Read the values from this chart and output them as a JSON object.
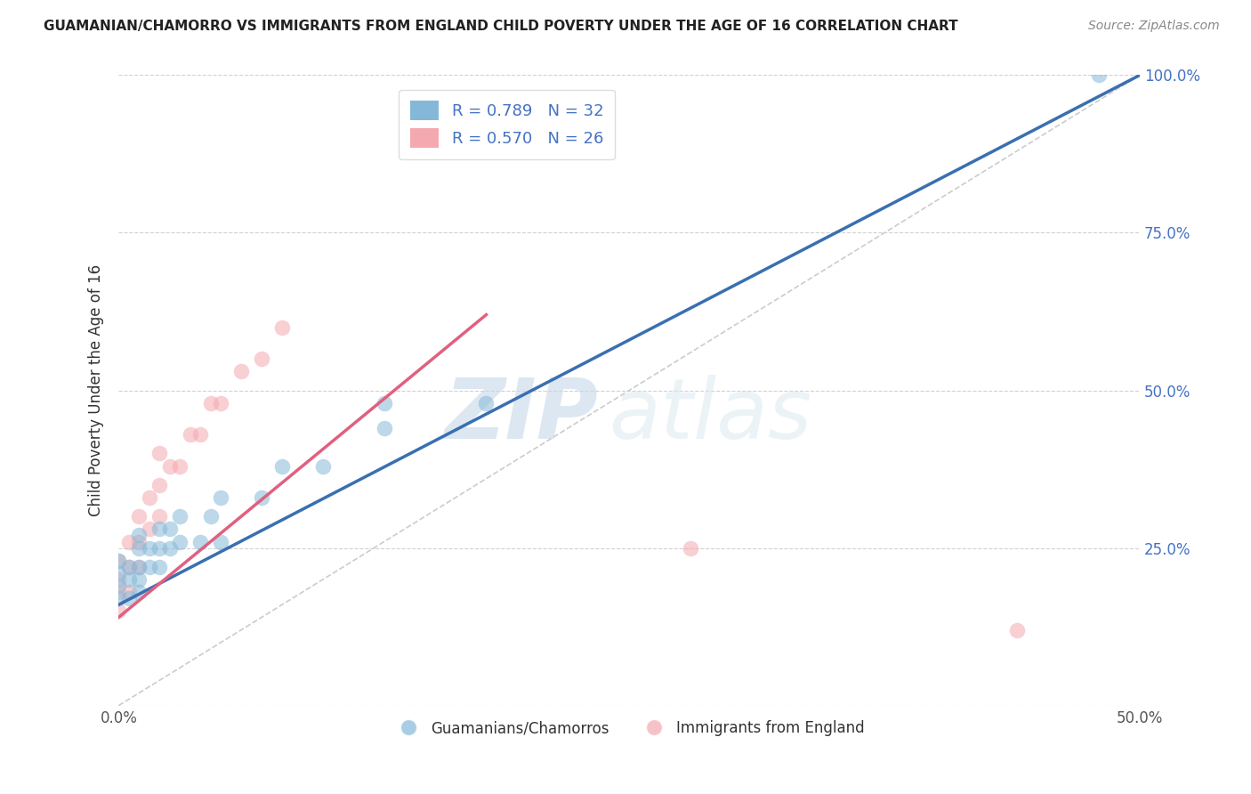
{
  "title": "GUAMANIAN/CHAMORRO VS IMMIGRANTS FROM ENGLAND CHILD POVERTY UNDER THE AGE OF 16 CORRELATION CHART",
  "source": "Source: ZipAtlas.com",
  "ylabel": "Child Poverty Under the Age of 16",
  "xlim": [
    0,
    0.5
  ],
  "ylim": [
    0,
    1.0
  ],
  "xticks": [
    0.0,
    0.1,
    0.2,
    0.3,
    0.4,
    0.5
  ],
  "xtick_labels": [
    "0.0%",
    "",
    "",
    "",
    "",
    "50.0%"
  ],
  "yticks": [
    0.0,
    0.25,
    0.5,
    0.75,
    1.0
  ],
  "ytick_labels_right": [
    "",
    "25.0%",
    "50.0%",
    "75.0%",
    "100.0%"
  ],
  "legend1_label": "R = 0.789   N = 32",
  "legend2_label": "R = 0.570   N = 26",
  "legend_bottom_label1": "Guamanians/Chamorros",
  "legend_bottom_label2": "Immigrants from England",
  "color_blue": "#85b8d8",
  "color_pink": "#f4a8b0",
  "color_blue_line": "#3a6fb0",
  "color_pink_line": "#e06080",
  "watermark_zip": "ZIP",
  "watermark_atlas": "atlas",
  "blue_scatter_x": [
    0.0,
    0.0,
    0.0,
    0.0,
    0.005,
    0.005,
    0.005,
    0.01,
    0.01,
    0.01,
    0.01,
    0.01,
    0.015,
    0.015,
    0.02,
    0.02,
    0.02,
    0.025,
    0.025,
    0.03,
    0.03,
    0.04,
    0.045,
    0.05,
    0.05,
    0.07,
    0.08,
    0.1,
    0.13,
    0.13,
    0.18,
    0.48
  ],
  "blue_scatter_y": [
    0.17,
    0.19,
    0.21,
    0.23,
    0.17,
    0.2,
    0.22,
    0.18,
    0.2,
    0.22,
    0.25,
    0.27,
    0.22,
    0.25,
    0.22,
    0.25,
    0.28,
    0.25,
    0.28,
    0.26,
    0.3,
    0.26,
    0.3,
    0.26,
    0.33,
    0.33,
    0.38,
    0.38,
    0.44,
    0.48,
    0.48,
    1.0
  ],
  "pink_scatter_x": [
    0.0,
    0.0,
    0.0,
    0.0,
    0.005,
    0.005,
    0.005,
    0.01,
    0.01,
    0.01,
    0.015,
    0.015,
    0.02,
    0.02,
    0.02,
    0.025,
    0.03,
    0.035,
    0.04,
    0.045,
    0.05,
    0.06,
    0.07,
    0.08,
    0.28,
    0.44
  ],
  "pink_scatter_y": [
    0.15,
    0.18,
    0.2,
    0.23,
    0.18,
    0.22,
    0.26,
    0.22,
    0.26,
    0.3,
    0.28,
    0.33,
    0.3,
    0.35,
    0.4,
    0.38,
    0.38,
    0.43,
    0.43,
    0.48,
    0.48,
    0.53,
    0.55,
    0.6,
    0.25,
    0.12
  ],
  "blue_line_x": [
    0.0,
    0.5
  ],
  "blue_line_y": [
    0.16,
    1.0
  ],
  "pink_line_x": [
    0.0,
    0.18
  ],
  "pink_line_y": [
    0.14,
    0.62
  ],
  "ref_line_x": [
    0.0,
    0.5
  ],
  "ref_line_y": [
    0.0,
    1.0
  ],
  "background_color": "#ffffff",
  "grid_color": "#cccccc"
}
